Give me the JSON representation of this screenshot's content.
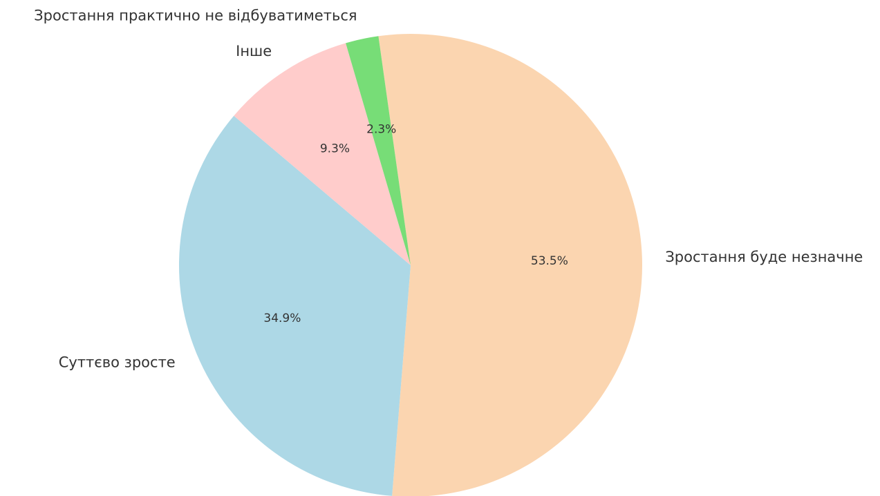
{
  "chart_data": {
    "type": "pie",
    "categories": [
      "Зростання буде незначне",
      "Суттєво зросте",
      "Інше",
      "Зростання практично не відбуватиметься"
    ],
    "values": [
      53.5,
      34.9,
      9.3,
      2.3
    ],
    "value_labels": [
      "53.5%",
      "34.9%",
      "9.3%",
      "2.3%"
    ],
    "colors": [
      "#fbd5b0",
      "#add8e6",
      "#ffcccb",
      "#77dd77"
    ]
  }
}
